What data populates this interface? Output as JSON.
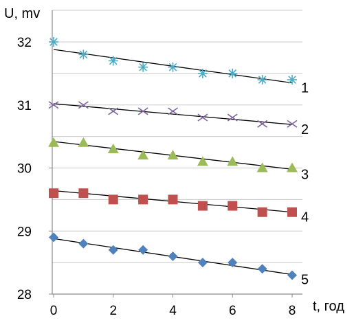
{
  "chart_data": {
    "type": "scatter",
    "ylabel": "U, mv",
    "xlabel": "t, год",
    "xlim": [
      0,
      8.4
    ],
    "ylim": [
      28,
      32.4
    ],
    "x_ticks": [
      "0",
      "2",
      "4",
      "6",
      "8"
    ],
    "y_ticks": [
      "28",
      "29",
      "30",
      "31",
      "32"
    ],
    "grid": "horizontal",
    "series": [
      {
        "name": "1",
        "marker": "asterisk",
        "color": "#4BACC6",
        "x": [
          0,
          1,
          2,
          3,
          4,
          5,
          6,
          7,
          8
        ],
        "y": [
          32.0,
          31.8,
          31.7,
          31.6,
          31.6,
          31.5,
          31.5,
          31.4,
          31.4
        ],
        "trend": [
          31.88,
          31.35
        ]
      },
      {
        "name": "2",
        "marker": "x",
        "color": "#8064A2",
        "x": [
          0,
          1,
          2,
          3,
          4,
          5,
          6,
          7,
          8
        ],
        "y": [
          31.0,
          31.0,
          30.9,
          30.9,
          30.9,
          30.8,
          30.8,
          30.7,
          30.7
        ],
        "trend": [
          31.02,
          30.69
        ]
      },
      {
        "name": "3",
        "marker": "triangle",
        "color": "#9BBB59",
        "x": [
          0,
          1,
          2,
          3,
          4,
          5,
          6,
          7,
          8
        ],
        "y": [
          30.4,
          30.4,
          30.3,
          30.2,
          30.2,
          30.1,
          30.1,
          30.0,
          30.0
        ],
        "trend": [
          30.42,
          29.98
        ]
      },
      {
        "name": "4",
        "marker": "square",
        "color": "#C0504D",
        "x": [
          0,
          1,
          2,
          3,
          4,
          5,
          6,
          7,
          8
        ],
        "y": [
          29.6,
          29.6,
          29.5,
          29.5,
          29.5,
          29.4,
          29.4,
          29.3,
          29.3
        ],
        "trend": [
          29.64,
          29.3
        ]
      },
      {
        "name": "5",
        "marker": "diamond",
        "color": "#4F81BD",
        "x": [
          0,
          1,
          2,
          3,
          4,
          5,
          6,
          7,
          8
        ],
        "y": [
          28.9,
          28.8,
          28.7,
          28.7,
          28.6,
          28.5,
          28.5,
          28.4,
          28.3
        ],
        "trend": [
          28.88,
          28.31
        ]
      }
    ]
  }
}
